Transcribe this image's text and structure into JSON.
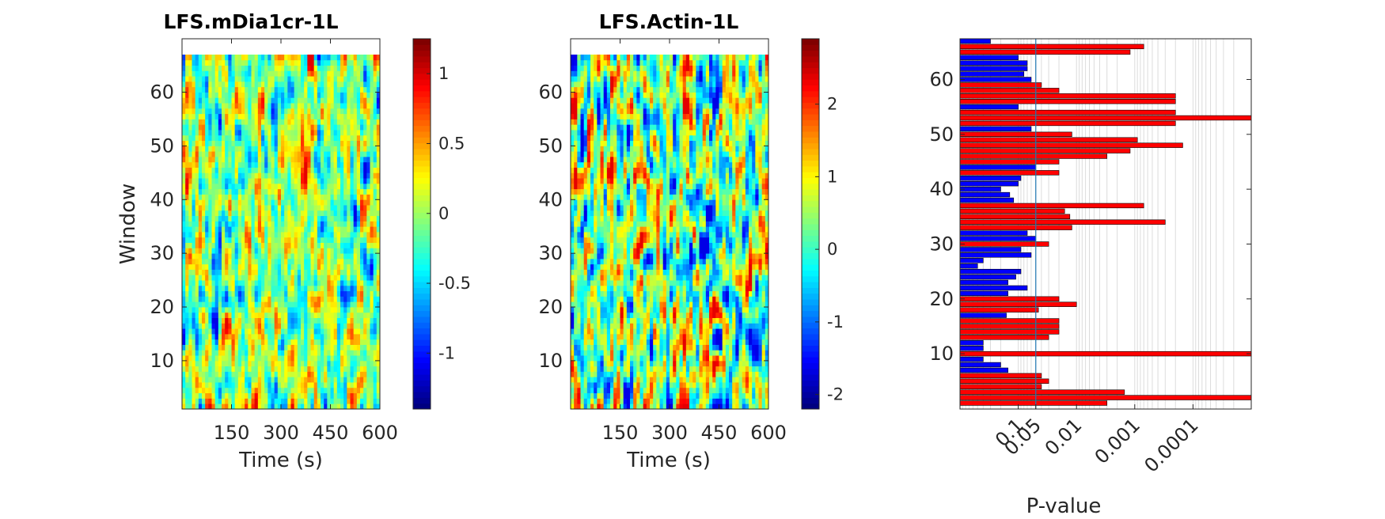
{
  "chart_data": [
    {
      "type": "heatmap",
      "title": "LFS.mDia1cr-1L",
      "xlabel": "Time (s)",
      "ylabel": "Window",
      "xlim": [
        0,
        600
      ],
      "ylim": [
        1,
        67
      ],
      "x_ticks": [
        "150",
        "300",
        "450",
        "600"
      ],
      "y_ticks": [
        "10",
        "20",
        "30",
        "40",
        "50",
        "60"
      ],
      "colormap": "jet",
      "colorbar": {
        "range": [
          -1.4,
          1.25
        ],
        "ticks": [
          "-1",
          "-0.5",
          "0",
          "0.5",
          "1"
        ]
      }
    },
    {
      "type": "heatmap",
      "title": "LFS.Actin-1L",
      "xlabel": "Time (s)",
      "ylabel": "",
      "xlim": [
        0,
        600
      ],
      "ylim": [
        1,
        67
      ],
      "x_ticks": [
        "150",
        "300",
        "450",
        "600"
      ],
      "y_ticks": [
        "10",
        "20",
        "30",
        "40",
        "50",
        "60"
      ],
      "colormap": "jet",
      "colorbar": {
        "range": [
          -2.2,
          2.9
        ],
        "ticks": [
          "-2",
          "-1",
          "0",
          "1",
          "2"
        ]
      }
    },
    {
      "type": "bar",
      "orientation": "horizontal",
      "title": "",
      "xlabel": "P-value",
      "ylabel": "",
      "x_scale": "log_reciprocal",
      "xlim_pvalue": [
        1,
        1e-05
      ],
      "x_ticks": [
        "0.1",
        "0.05",
        "0.01",
        "0.001",
        "0.0001"
      ],
      "threshold_pvalue": 0.05,
      "ylim": [
        1,
        68
      ],
      "y_ticks": [
        "10",
        "20",
        "30",
        "40",
        "50",
        "60"
      ],
      "colors": {
        "significant": "#ff0000",
        "nonsignificant": "#0000ff",
        "edge": "#000000",
        "threshold": "#1f77b4"
      },
      "windows": [
        1,
        2,
        3,
        4,
        5,
        6,
        7,
        8,
        9,
        10,
        11,
        12,
        13,
        14,
        15,
        16,
        17,
        18,
        19,
        20,
        21,
        22,
        23,
        24,
        25,
        26,
        27,
        28,
        29,
        30,
        31,
        32,
        33,
        34,
        35,
        36,
        37,
        38,
        39,
        40,
        41,
        42,
        43,
        44,
        45,
        46,
        47,
        48,
        49,
        50,
        51,
        52,
        53,
        54,
        55,
        56,
        57,
        58,
        59,
        60,
        61,
        62,
        63,
        64,
        65,
        66,
        67
      ],
      "p_values": [
        0.003,
        1e-05,
        0.0015,
        0.04,
        0.03,
        0.04,
        0.15,
        0.2,
        0.4,
        1e-05,
        0.4,
        0.4,
        0.03,
        0.02,
        0.02,
        0.02,
        0.16,
        0.045,
        0.01,
        0.02,
        0.15,
        0.07,
        0.15,
        0.11,
        0.09,
        0.5,
        0.4,
        0.06,
        0.09,
        0.03,
        0.05,
        0.07,
        0.012,
        0.0003,
        0.013,
        0.016,
        0.0007,
        0.12,
        0.14,
        0.2,
        0.1,
        0.09,
        0.02,
        0.05,
        0.02,
        0.003,
        0.0012,
        0.00015,
        0.0009,
        0.012,
        0.06,
        0.0002,
        1e-05,
        0.0002,
        0.1,
        0.0002,
        0.0002,
        0.02,
        0.04,
        0.06,
        0.08,
        0.07,
        0.07,
        0.1,
        0.0012,
        0.0007,
        0.3
      ]
    }
  ]
}
